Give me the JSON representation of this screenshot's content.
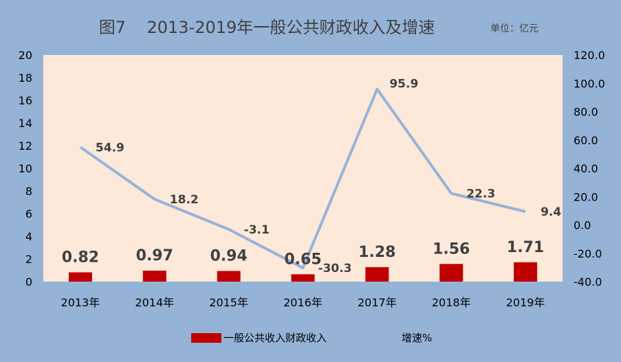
{
  "chart_data": {
    "type": "bar",
    "title": "图7    2013-2019年一般公共财政收入及增速",
    "unit_note": "单位：亿元",
    "categories": [
      "2013年",
      "2014年",
      "2015年",
      "2016年",
      "2017年",
      "2018年",
      "2019年"
    ],
    "series": [
      {
        "name": "一般公共收入财政收入",
        "type": "bar",
        "axis": "left",
        "color": "#c00000",
        "values": [
          0.82,
          0.97,
          0.94,
          0.65,
          1.28,
          1.56,
          1.71
        ],
        "labels": [
          "0.82",
          "0.97",
          "0.94",
          "0.65",
          "1.28",
          "1.56",
          "1.71"
        ]
      },
      {
        "name": "增速%",
        "type": "line",
        "axis": "right",
        "color": "#95b3d7",
        "values": [
          54.9,
          18.2,
          -3.1,
          -30.3,
          95.9,
          22.3,
          9.4
        ],
        "labels": [
          "54.9",
          "18.2",
          "-3.1",
          "-30.3",
          "95.9",
          "22.3",
          "9.4"
        ]
      }
    ],
    "y_left": {
      "min": 0,
      "max": 20,
      "ticks": [
        "0",
        "2",
        "4",
        "6",
        "8",
        "10",
        "12",
        "14",
        "16",
        "18",
        "20"
      ]
    },
    "y_right": {
      "min": -40,
      "max": 120,
      "ticks": [
        "-40.0",
        "-20.0",
        "0.0",
        "20.0",
        "40.0",
        "60.0",
        "80.0",
        "100.0",
        "120.0"
      ]
    },
    "grid": false,
    "legend_position": "bottom",
    "plot_background": "#fde9d9",
    "figure_background": "#95b3d7"
  }
}
